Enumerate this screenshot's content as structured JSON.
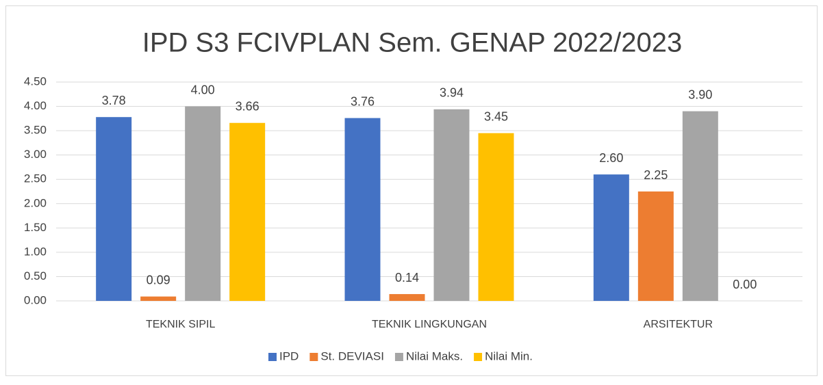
{
  "chart_data": {
    "type": "bar",
    "title": "IPD S3 FCIVPLAN Sem. GENAP 2022/2023",
    "categories": [
      "TEKNIK SIPIL",
      "TEKNIK LINGKUNGAN",
      "ARSITEKTUR"
    ],
    "series": [
      {
        "name": "IPD",
        "color": "#4472c4",
        "values": [
          3.78,
          3.76,
          2.6
        ],
        "value_labels": [
          "3.78",
          "3.76",
          "2.60"
        ]
      },
      {
        "name": "St. DEVIASI",
        "color": "#ed7d31",
        "values": [
          0.09,
          0.14,
          2.25
        ],
        "value_labels": [
          "0.09",
          "0.14",
          "2.25"
        ]
      },
      {
        "name": "Nilai Maks.",
        "color": "#a5a5a5",
        "values": [
          4,
          3.94,
          3.9
        ],
        "value_labels": [
          "4.00",
          "3.94",
          "3.90"
        ]
      },
      {
        "name": "Nilai Min.",
        "color": "#ffc000",
        "values": [
          3.66,
          3.45,
          0
        ],
        "value_labels": [
          "3.66",
          "3.45",
          "0.00"
        ]
      }
    ],
    "ylim": [
      0,
      4.5
    ],
    "yticks": [
      {
        "value": 0,
        "label": "0.00"
      },
      {
        "value": 0.5,
        "label": "0.50"
      },
      {
        "value": 1,
        "label": "1.00"
      },
      {
        "value": 1.5,
        "label": "1.50"
      },
      {
        "value": 2,
        "label": "2.00"
      },
      {
        "value": 2.5,
        "label": "2.50"
      },
      {
        "value": 3,
        "label": "3.00"
      },
      {
        "value": 3.5,
        "label": "3.50"
      },
      {
        "value": 4,
        "label": "4.00"
      },
      {
        "value": 4.5,
        "label": "4.50"
      }
    ],
    "grid": true,
    "legend": "bottom"
  }
}
